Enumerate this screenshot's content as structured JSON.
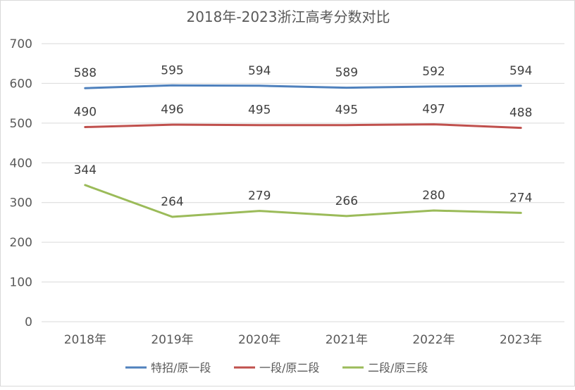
{
  "chart_data": {
    "type": "line",
    "title": "2018年-2023浙江高考分数对比",
    "categories": [
      "2018年",
      "2019年",
      "2020年",
      "2021年",
      "2022年",
      "2023年"
    ],
    "ylim": [
      0,
      700
    ],
    "yticks": [
      0,
      100,
      200,
      300,
      400,
      500,
      600,
      700
    ],
    "grid": true,
    "legend": "bottom",
    "series": [
      {
        "name": "特招/原一段",
        "color": "#4f81bd",
        "values": [
          588,
          595,
          594,
          589,
          592,
          594
        ]
      },
      {
        "name": "一段/原二段",
        "color": "#c0504d",
        "values": [
          490,
          496,
          495,
          495,
          497,
          488
        ]
      },
      {
        "name": "二段/原三段",
        "color": "#9bbb59",
        "values": [
          344,
          264,
          279,
          266,
          280,
          274
        ]
      }
    ]
  }
}
